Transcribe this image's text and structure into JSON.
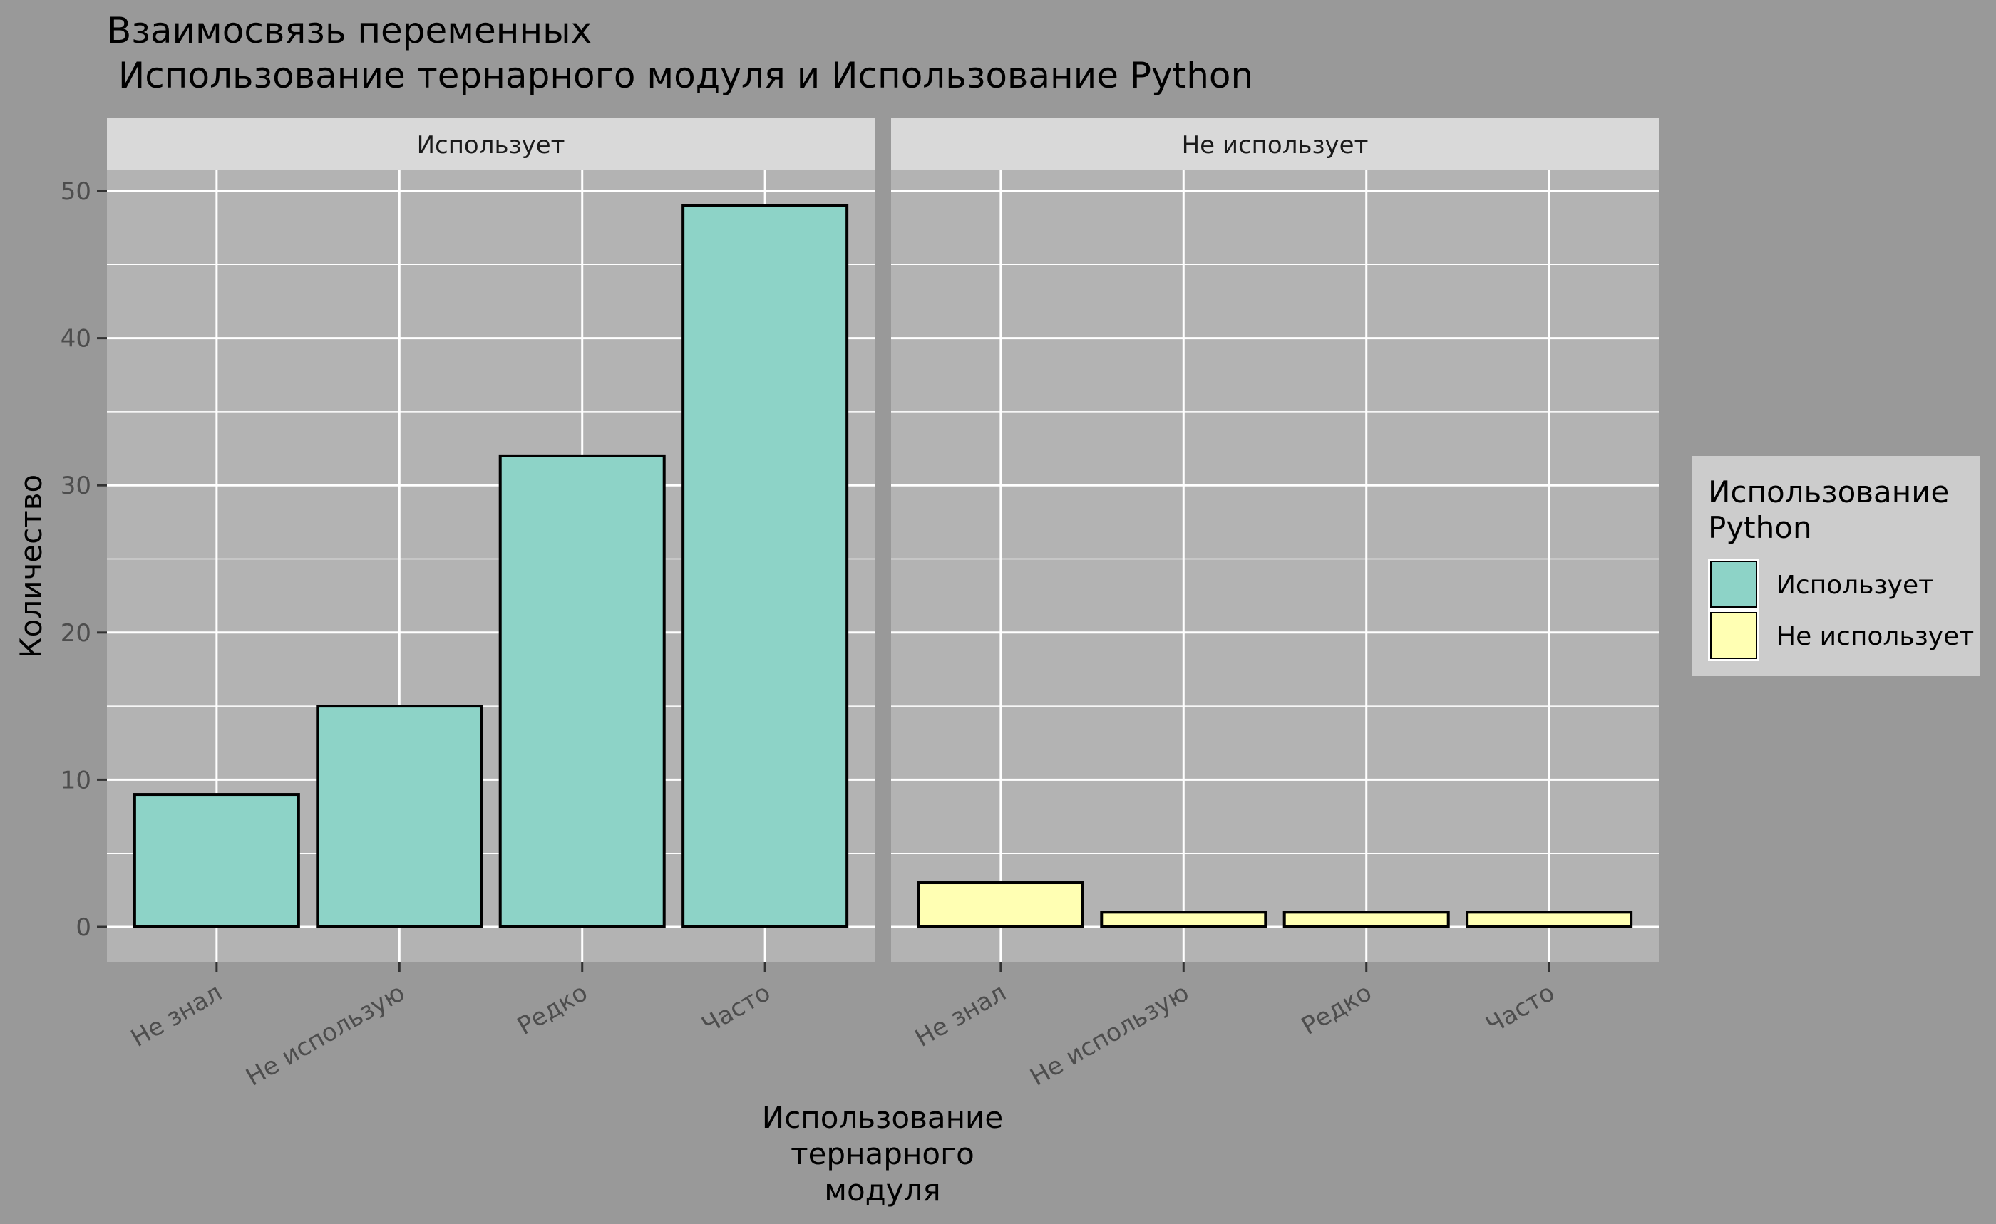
{
  "chart_data": {
    "type": "bar",
    "title": "Взаимосвязь переменных",
    "subtitle": " Использование тернарного модуля и Использование Python",
    "xlabel": [
      "Использование",
      "тернарного",
      "модуля"
    ],
    "ylabel": "Количество",
    "categories": [
      "Не знал",
      "Не использую",
      "Редко",
      "Часто"
    ],
    "ylim": [
      0,
      52.4
    ],
    "yticks": [
      0,
      10,
      20,
      30,
      40,
      50
    ],
    "grid": true,
    "facets": [
      {
        "label": "Использует",
        "series": [
          {
            "name": "Использует",
            "values": [
              9,
              15,
              32,
              49
            ],
            "color": "#8DD3C7"
          }
        ]
      },
      {
        "label": "Не использует",
        "series": [
          {
            "name": "Не использует",
            "values": [
              3,
              1,
              1,
              1
            ],
            "color": "#FFFFB3"
          }
        ]
      }
    ],
    "legend": {
      "position": "right",
      "title": [
        "Использование",
        "Python"
      ],
      "items": [
        {
          "label": "Использует",
          "color": "#8DD3C7"
        },
        {
          "label": "Не использует",
          "color": "#FFFFB3"
        }
      ]
    }
  },
  "colors": {
    "background": "#999999",
    "panel": "#B3B3B3",
    "strip": "#D9D9D9",
    "legend_bg": "#CCCCCC",
    "grid": "#FFFFFF"
  }
}
